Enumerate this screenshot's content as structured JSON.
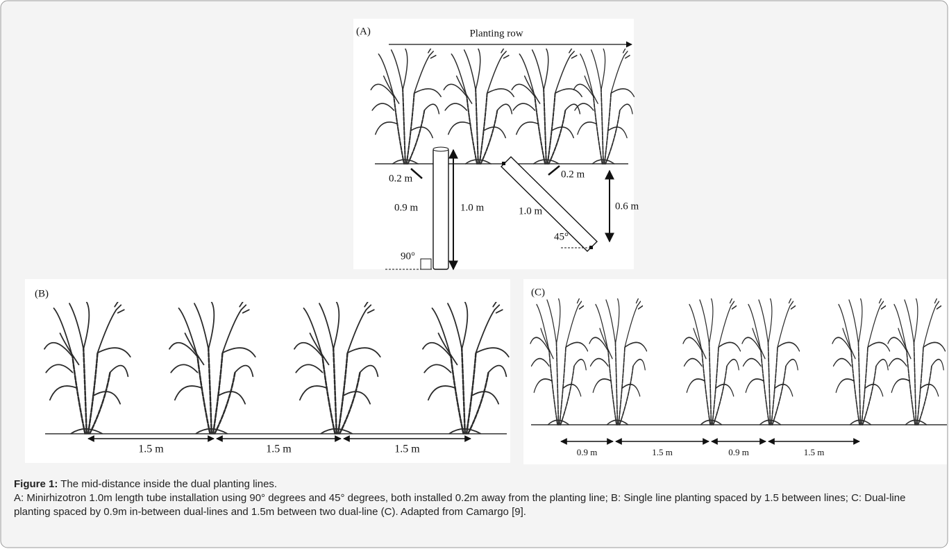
{
  "panels": {
    "a": {
      "label": "(A)",
      "row_label": "Planting row",
      "labels": [
        "0.2 m",
        "0.2 m",
        "0.9 m",
        "1.0 m",
        "1.0 m",
        "0.6 m",
        "45°",
        "90°"
      ]
    },
    "b": {
      "label": "(B)",
      "spacings": [
        "1.5 m",
        "1.5 m",
        "1.5 m"
      ]
    },
    "c": {
      "label": "(C)",
      "spacings": [
        "0.9 m",
        "1.5 m",
        "0.9 m",
        "1.5 m"
      ]
    }
  },
  "caption": {
    "title": "Figure 1:",
    "subtitle": "The mid-distance inside the dual planting lines.",
    "text": "A: Minirhizotron 1.0m length tube installation using 90° degrees and 45° degrees, both installed 0.2m away from the planting line; B: Single line planting spaced by 1.5 between lines; C: Dual-line planting spaced by 0.9m in-between dual-lines and 1.5m between two dual-line (C). Adapted from Camargo [9]."
  }
}
